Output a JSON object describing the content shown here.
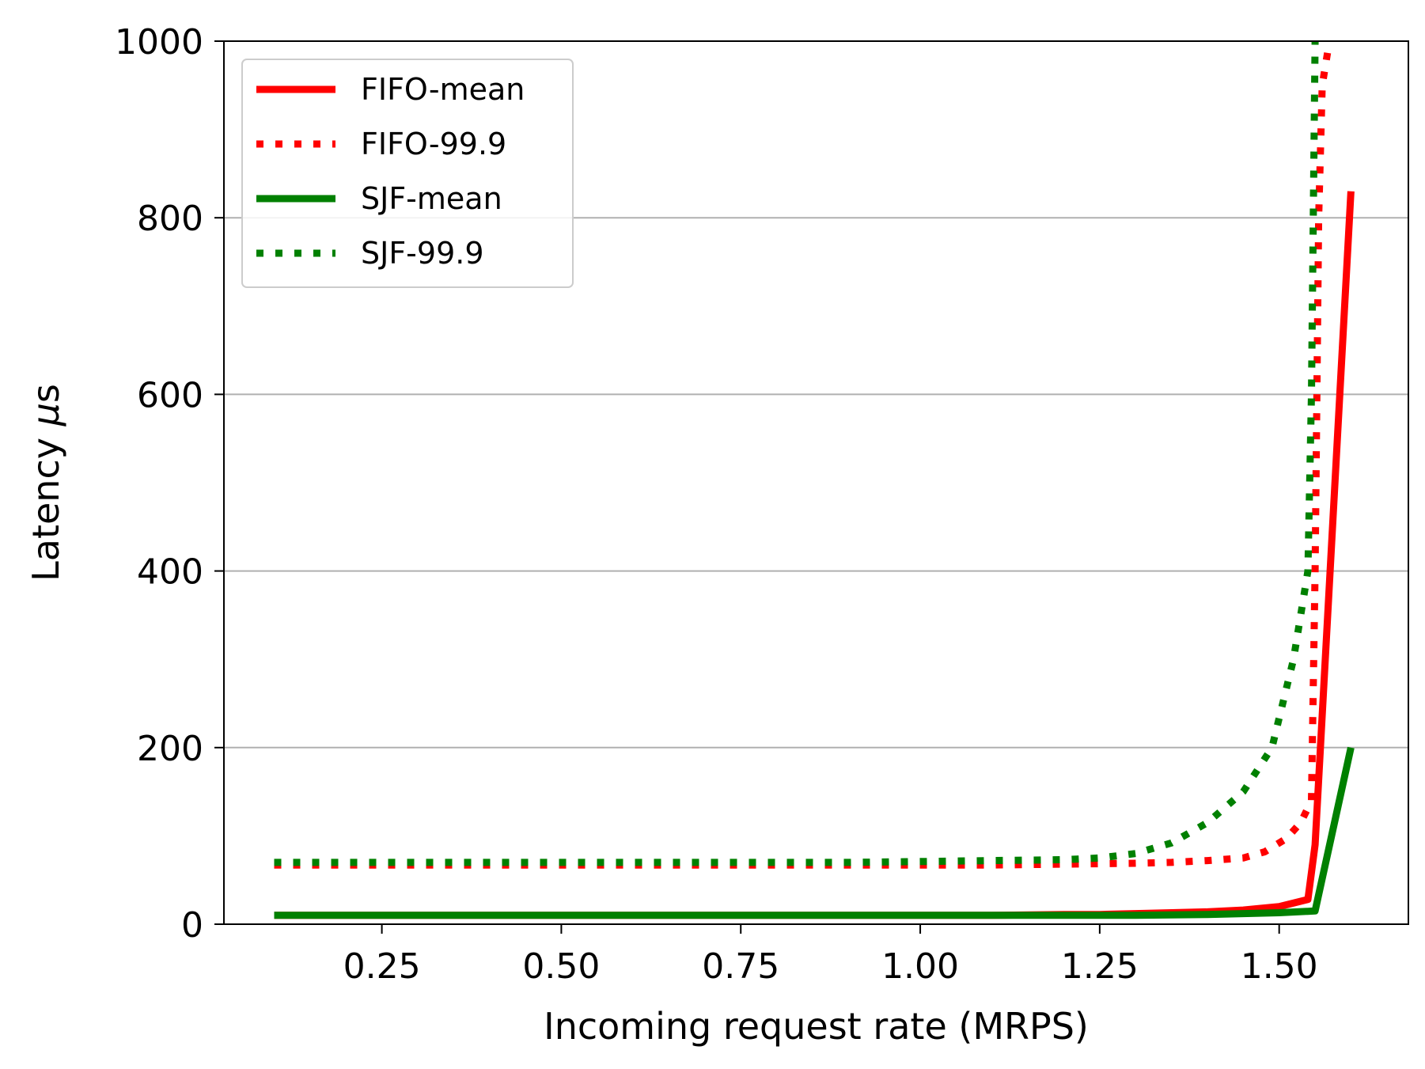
{
  "chart_data": {
    "type": "line",
    "title": "",
    "xlabel": "Incoming request rate (MRPS)",
    "ylabel_prefix": "Latency ",
    "ylabel_mu": "μ",
    "ylabel_suffix": "s",
    "xlim": [
      0.03,
      1.68
    ],
    "ylim": [
      0,
      1000
    ],
    "xticks": [
      0.25,
      0.5,
      0.75,
      1.0,
      1.25,
      1.5
    ],
    "xtick_labels": [
      "0.25",
      "0.50",
      "0.75",
      "1.00",
      "1.25",
      "1.50"
    ],
    "yticks": [
      0,
      200,
      400,
      600,
      800,
      1000
    ],
    "ytick_labels": [
      "0",
      "200",
      "400",
      "600",
      "800",
      "1000"
    ],
    "grid": "y-major",
    "legend_position": "upper-left",
    "series": [
      {
        "name": "FIFO-mean",
        "color": "#ff0000",
        "style": "solid",
        "x": [
          0.1,
          0.2,
          0.3,
          0.4,
          0.5,
          0.6,
          0.7,
          0.8,
          0.9,
          1.0,
          1.1,
          1.2,
          1.25,
          1.3,
          1.35,
          1.4,
          1.45,
          1.5,
          1.54,
          1.55,
          1.6
        ],
        "y": [
          10,
          10,
          10,
          10,
          10,
          10,
          10,
          10,
          10,
          10,
          10,
          11,
          11,
          12,
          13,
          14,
          16,
          20,
          28,
          90,
          830
        ]
      },
      {
        "name": "FIFO-99.9",
        "color": "#ff0000",
        "style": "dotted",
        "x": [
          0.1,
          0.2,
          0.3,
          0.4,
          0.5,
          0.6,
          0.7,
          0.8,
          0.9,
          1.0,
          1.1,
          1.2,
          1.3,
          1.35,
          1.4,
          1.45,
          1.48,
          1.51,
          1.53,
          1.545,
          1.55,
          1.555,
          1.56,
          1.57
        ],
        "y": [
          67,
          67,
          67,
          67,
          67,
          67,
          67,
          67,
          67,
          67,
          67,
          68,
          69,
          70,
          72,
          75,
          82,
          97,
          115,
          140,
          400,
          800,
          950,
          1000
        ]
      },
      {
        "name": "SJF-mean",
        "color": "#008000",
        "style": "solid",
        "x": [
          0.1,
          0.2,
          0.3,
          0.4,
          0.5,
          0.6,
          0.7,
          0.8,
          0.9,
          1.0,
          1.1,
          1.2,
          1.3,
          1.4,
          1.5,
          1.55,
          1.6
        ],
        "y": [
          10,
          10,
          10,
          10,
          10,
          10,
          10,
          10,
          10,
          10,
          10,
          10,
          10,
          11,
          13,
          15,
          200
        ]
      },
      {
        "name": "SJF-99.9",
        "color": "#008000",
        "style": "dotted",
        "x": [
          0.1,
          0.2,
          0.3,
          0.4,
          0.5,
          0.6,
          0.7,
          0.8,
          0.9,
          1.0,
          1.1,
          1.2,
          1.25,
          1.3,
          1.35,
          1.4,
          1.45,
          1.49,
          1.52,
          1.54,
          1.545,
          1.55
        ],
        "y": [
          70,
          70,
          70,
          70,
          70,
          70,
          70,
          70,
          70,
          71,
          72,
          73,
          75,
          80,
          92,
          115,
          150,
          200,
          300,
          400,
          600,
          1000
        ]
      }
    ]
  }
}
